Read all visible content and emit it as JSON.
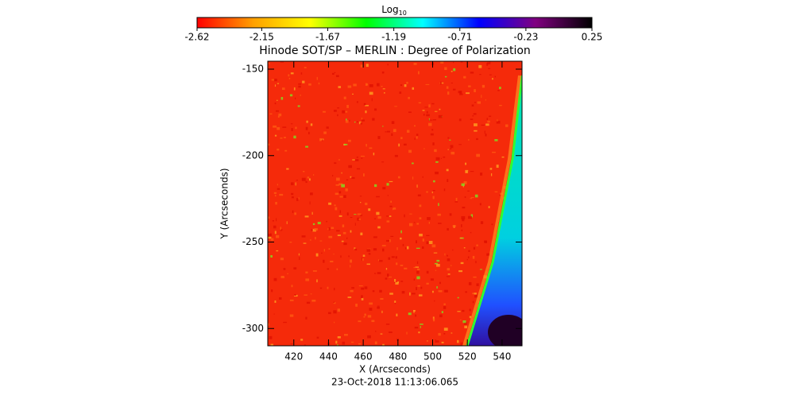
{
  "chart_data": {
    "type": "image",
    "title": "Hinode SOT/SP – MERLIN : Degree of Polarization",
    "xlabel": "X (Arcseconds)",
    "ylabel": "Y (Arcseconds)",
    "footer": "23-Oct-2018 11:13:06.065",
    "xlim": [
      405,
      551.5
    ],
    "xticks": [
      420,
      440,
      460,
      480,
      500,
      520,
      540
    ],
    "ylim": [
      -310,
      -145.4
    ],
    "yticks": [
      -300,
      -250,
      -200,
      -150
    ],
    "colorbar": {
      "label": "Log",
      "label_subscript": "10",
      "lim": [
        -2.62,
        0.25
      ],
      "ticks": [
        -2.62,
        -2.15,
        -1.67,
        -1.19,
        -0.71,
        -0.23,
        0.25
      ],
      "colormap": [
        "#ff0000",
        "#ffa000",
        "#ffff00",
        "#00ff00",
        "#00ffff",
        "#0000ff",
        "#800080",
        "#000000"
      ]
    }
  }
}
